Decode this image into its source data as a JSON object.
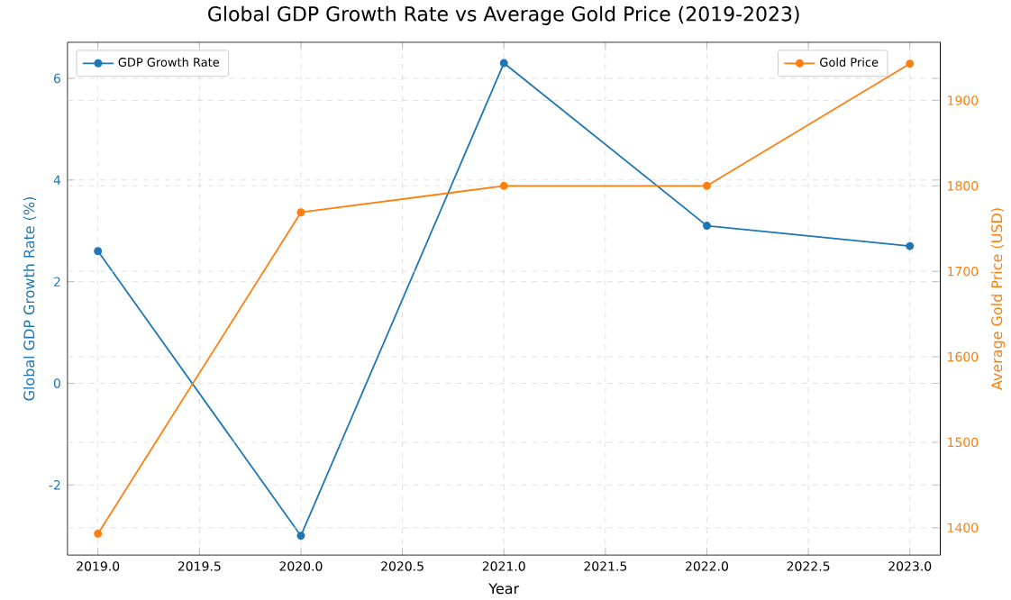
{
  "chart_data": {
    "type": "line",
    "title": "Global GDP Growth Rate vs Average Gold Price (2019-2023)",
    "xlabel": "Year",
    "ylabel": "Global GDP Growth Rate (%)",
    "y2label": "Average Gold Price (USD)",
    "x": [
      2019,
      2020,
      2021,
      2022,
      2023
    ],
    "series": [
      {
        "name": "GDP Growth Rate",
        "color": "#1f77b4",
        "values": [
          2.6,
          -3.0,
          6.3,
          3.1,
          2.7
        ]
      },
      {
        "name": "Gold Price",
        "color": "#ff7f0e",
        "axis": "y2",
        "values": [
          1393,
          1769,
          1800,
          1800,
          1943
        ]
      }
    ],
    "xlim": [
      2018.85,
      2023.15
    ],
    "xticks": [
      {
        "value": 2019,
        "label": "2019.0"
      },
      {
        "value": 2019.5,
        "label": "2019.5"
      },
      {
        "value": 2020,
        "label": "2020.0"
      },
      {
        "value": 2020.5,
        "label": "2020.5"
      },
      {
        "value": 2021,
        "label": "2021.0"
      },
      {
        "value": 2021.5,
        "label": "2021.5"
      },
      {
        "value": 2022,
        "label": "2022.0"
      },
      {
        "value": 2022.5,
        "label": "2022.5"
      },
      {
        "value": 2023,
        "label": "2023.0"
      }
    ],
    "ylim": [
      -3.38,
      6.71
    ],
    "yticks": [
      -2,
      0,
      2,
      4,
      6
    ],
    "y2lim": [
      1368,
      1968
    ],
    "y2ticks": [
      1400,
      1500,
      1600,
      1700,
      1800,
      1900
    ],
    "grid": true,
    "legend": "top left",
    "marker": "circle",
    "line_style": "solid"
  }
}
